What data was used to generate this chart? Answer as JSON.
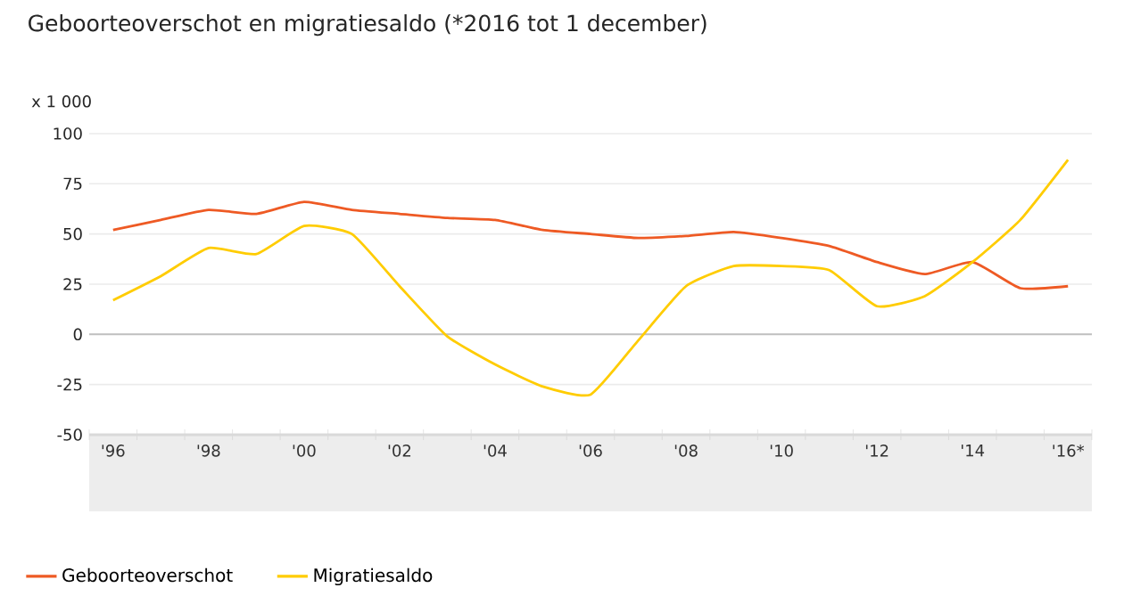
{
  "chart_data": {
    "type": "line",
    "title": "Geboorteoverschot en migratiesaldo (*2016 tot 1 december)",
    "ylabel": "x 1 000",
    "categories": [
      "'96",
      null,
      "'98",
      null,
      "'00",
      null,
      "'02",
      null,
      "'04",
      null,
      "'06",
      null,
      "'08",
      null,
      "'10",
      null,
      "'12",
      null,
      "'14",
      null,
      "'16*"
    ],
    "series": [
      {
        "name": "Geboorteoverschot",
        "color": "#ee5a24",
        "values": [
          52,
          57,
          62,
          60,
          66,
          62,
          60,
          58,
          57,
          52,
          50,
          48,
          49,
          51,
          48,
          44,
          36,
          30,
          36,
          23,
          24
        ]
      },
      {
        "name": "Migratiesaldo",
        "color": "#ffcc00",
        "values": [
          17,
          29,
          43,
          40,
          54,
          50,
          24,
          -1,
          -15,
          -26,
          -30,
          -3,
          24,
          34,
          34,
          32,
          14,
          19,
          36,
          57,
          87
        ]
      }
    ],
    "ylim": [
      -50,
      100
    ],
    "yticks": [
      -50,
      -25,
      0,
      25,
      50,
      75,
      100
    ],
    "grid": "y",
    "legend": "bottom",
    "marker": "none",
    "line_style": "solid"
  }
}
